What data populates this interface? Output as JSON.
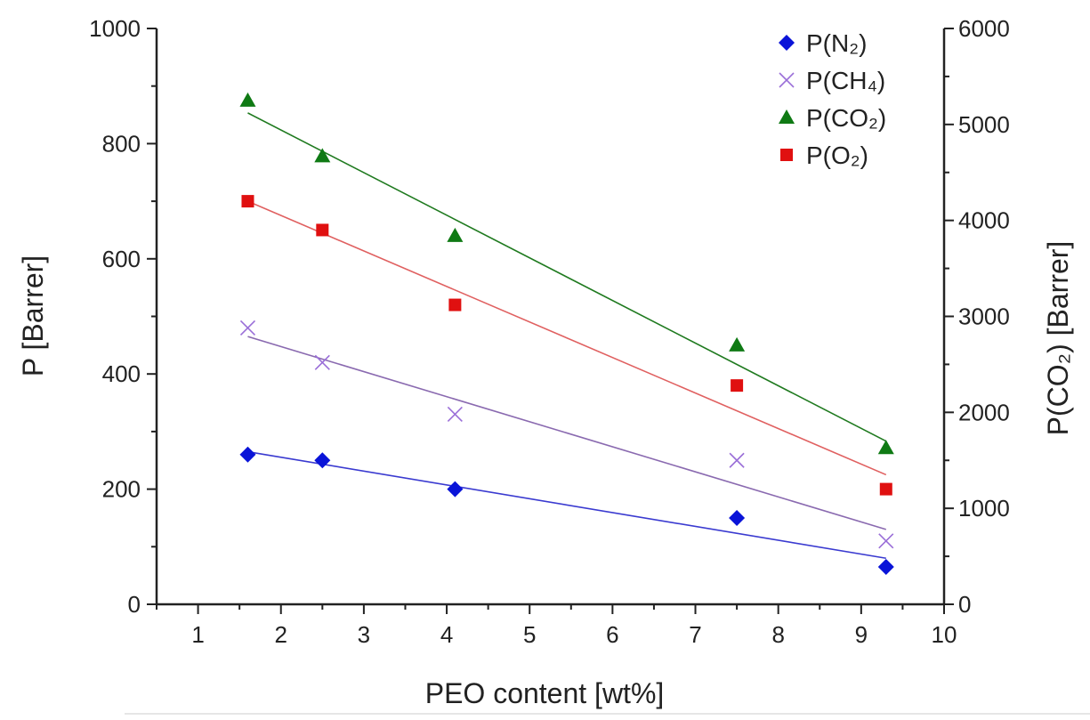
{
  "chart_data": {
    "type": "scatter",
    "title": "",
    "xlabel": "PEO content  [wt%]",
    "ylabel": "P [Barrer]",
    "y2label": "P(CO₂) [Barrer]",
    "xlim": [
      0.5,
      10
    ],
    "ylim": [
      0,
      1000
    ],
    "y2lim": [
      0,
      6000
    ],
    "xticks": [
      1,
      2,
      3,
      4,
      5,
      6,
      7,
      8,
      9,
      10
    ],
    "yticks": [
      0,
      200,
      400,
      600,
      800,
      1000
    ],
    "y2ticks": [
      0,
      1000,
      2000,
      3000,
      4000,
      5000,
      6000
    ],
    "grid": false,
    "legend": "top-right",
    "x": [
      1.6,
      2.5,
      4.1,
      7.5,
      9.3
    ],
    "series": [
      {
        "name": "P(N₂)",
        "axis": "left",
        "marker": "diamond",
        "color": "#0a14d8",
        "values": [
          260,
          250,
          200,
          150,
          65
        ],
        "fit": [
          265,
          80
        ]
      },
      {
        "name": "P(CH₄)",
        "axis": "left",
        "marker": "x",
        "color": "#9a6ed8",
        "values": [
          480,
          420,
          330,
          250,
          110
        ],
        "fit": [
          465,
          130
        ]
      },
      {
        "name": "P(CO₂)",
        "axis": "right",
        "marker": "triangle",
        "color": "#0f7a14",
        "values": [
          5250,
          4670,
          3840,
          2700,
          1630
        ],
        "fit": [
          5120,
          1700
        ]
      },
      {
        "name": "P(O₂)",
        "axis": "left",
        "marker": "square",
        "color": "#e01010",
        "values": [
          700,
          650,
          520,
          380,
          200
        ],
        "fit": [
          700,
          225
        ]
      }
    ],
    "fit_line_colors": [
      "#3a3ad0",
      "#8a6ab0",
      "#1f7a1f",
      "#e06060"
    ]
  }
}
